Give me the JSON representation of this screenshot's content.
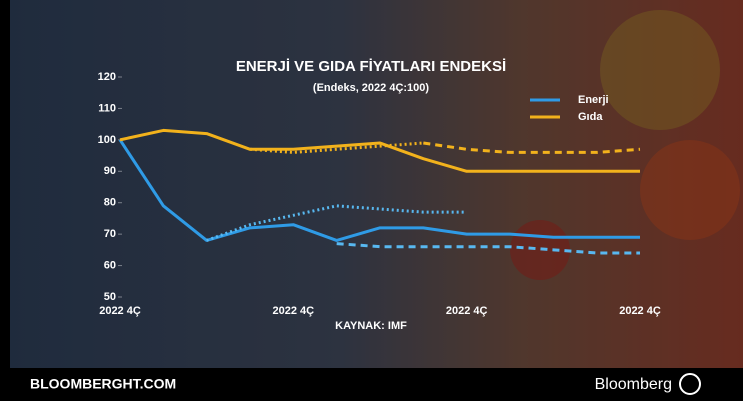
{
  "chart_data": {
    "type": "line",
    "title": "ENERJİ VE GIDA FİYATLARI ENDEKSİ",
    "subtitle": "(Endeks, 2022 4Ç:100)",
    "source": "KAYNAK: IMF",
    "footer_left": "BLOOMBERGHT.COM",
    "footer_right": "Bloomberg",
    "categories": [
      "2022 4Ç",
      null,
      null,
      null,
      "2022 4Ç",
      null,
      null,
      null,
      "2022 4Ç",
      null,
      null,
      null,
      "2022 4Ç"
    ],
    "ylim": [
      50,
      120
    ],
    "yticks": [
      50,
      60,
      70,
      80,
      90,
      100,
      110,
      120
    ],
    "legend": "top-right",
    "series": [
      {
        "name": "Enerji",
        "color": "#2f9be6",
        "values": [
          100,
          79,
          68,
          72,
          73,
          68,
          72,
          72,
          70,
          70,
          69,
          69,
          69
        ]
      },
      {
        "name": "Gıda",
        "color": "#f2b21c",
        "values": [
          100,
          103,
          102,
          97,
          97,
          98,
          99,
          94,
          90,
          90,
          90,
          90,
          90
        ]
      },
      {
        "color": "#58b8f0",
        "dash": "dot",
        "values": [
          null,
          null,
          68,
          73,
          76,
          79,
          78,
          77,
          77,
          null,
          null,
          null,
          null
        ]
      },
      {
        "color": "#58b8f0",
        "dash": "dash",
        "values": [
          null,
          null,
          null,
          null,
          null,
          67,
          66,
          66,
          66,
          66,
          65,
          64,
          64
        ]
      },
      {
        "color": "#f2b21c",
        "dash": "dot",
        "values": [
          null,
          null,
          null,
          97,
          96,
          97,
          98,
          99,
          null,
          null,
          null,
          null,
          null
        ]
      },
      {
        "color": "#f2b21c",
        "dash": "dash",
        "values": [
          null,
          null,
          null,
          null,
          null,
          null,
          null,
          99,
          97,
          96,
          96,
          96,
          97
        ]
      }
    ]
  }
}
